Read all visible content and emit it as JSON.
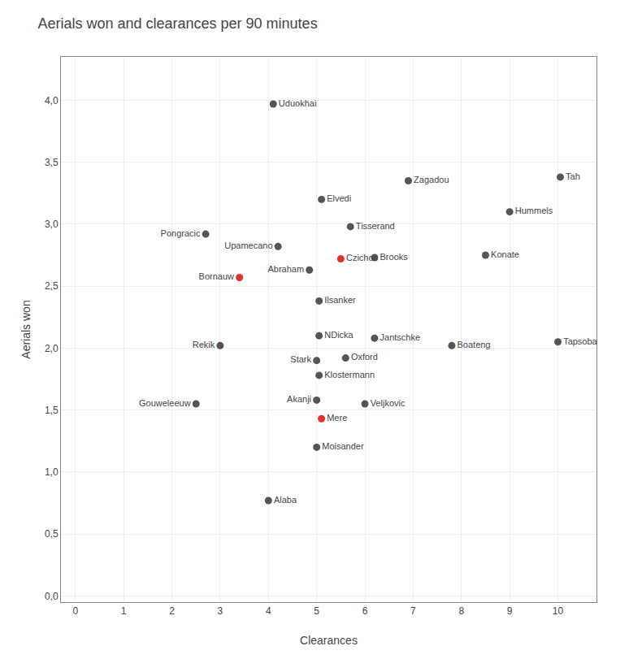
{
  "chart_data": {
    "type": "scatter",
    "title": "Aerials won and clearances per 90 minutes",
    "x_label": "Clearances",
    "y_label": "Aerials won",
    "xlim": [
      -0.3,
      10.8
    ],
    "ylim": [
      -0.05,
      4.35
    ],
    "xticks": [
      0,
      1,
      2,
      3,
      4,
      5,
      6,
      7,
      8,
      9,
      10
    ],
    "yticks": [
      {
        "value": 0.0,
        "label": "0,0"
      },
      {
        "value": 0.5,
        "label": "0,5"
      },
      {
        "value": 1.0,
        "label": "1,0"
      },
      {
        "value": 1.5,
        "label": "1,5"
      },
      {
        "value": 2.0,
        "label": "2,0"
      },
      {
        "value": 2.5,
        "label": "2,5"
      },
      {
        "value": 3.0,
        "label": "3,0"
      },
      {
        "value": 3.5,
        "label": "3,5"
      },
      {
        "value": 4.0,
        "label": "4,0"
      }
    ],
    "grid": true,
    "labels": [
      "Uduokhai",
      "Zagadou",
      "Tah",
      "Elvedi",
      "Hummels",
      "Tisserand",
      "Pongracic",
      "Upamecano",
      "Brooks",
      "Konate",
      "Czichos",
      "Abraham",
      "Bornauw",
      "Ilsanker",
      "NDicka",
      "Jantschke",
      "Rekik",
      "Boateng",
      "Tapsoba",
      "Stark",
      "Oxford",
      "Klostermann",
      "Akanji",
      "Gouweleeuw",
      "Veljkovic",
      "Mere",
      "Moisander",
      "Alaba"
    ],
    "x": [
      4.1,
      6.9,
      10.05,
      5.1,
      9.0,
      5.7,
      2.7,
      4.2,
      6.2,
      8.5,
      5.5,
      4.85,
      3.4,
      5.05,
      5.05,
      6.2,
      3.0,
      7.8,
      10.0,
      5.0,
      5.6,
      5.05,
      5.0,
      2.5,
      6.0,
      5.1,
      5.0,
      4.0
    ],
    "values": [
      3.97,
      3.35,
      3.38,
      3.2,
      3.1,
      2.98,
      2.92,
      2.82,
      2.73,
      2.75,
      2.72,
      2.63,
      2.57,
      2.38,
      2.1,
      2.08,
      2.02,
      2.02,
      2.05,
      1.9,
      1.92,
      1.78,
      1.58,
      1.55,
      1.55,
      1.43,
      1.2,
      0.77
    ],
    "colors": [
      "#555555",
      "#555555",
      "#555555",
      "#555555",
      "#555555",
      "#555555",
      "#555555",
      "#555555",
      "#555555",
      "#555555",
      "#e03030",
      "#555555",
      "#e03030",
      "#555555",
      "#555555",
      "#555555",
      "#555555",
      "#555555",
      "#555555",
      "#555555",
      "#555555",
      "#555555",
      "#555555",
      "#555555",
      "#555555",
      "#e03030",
      "#555555",
      "#555555"
    ]
  }
}
